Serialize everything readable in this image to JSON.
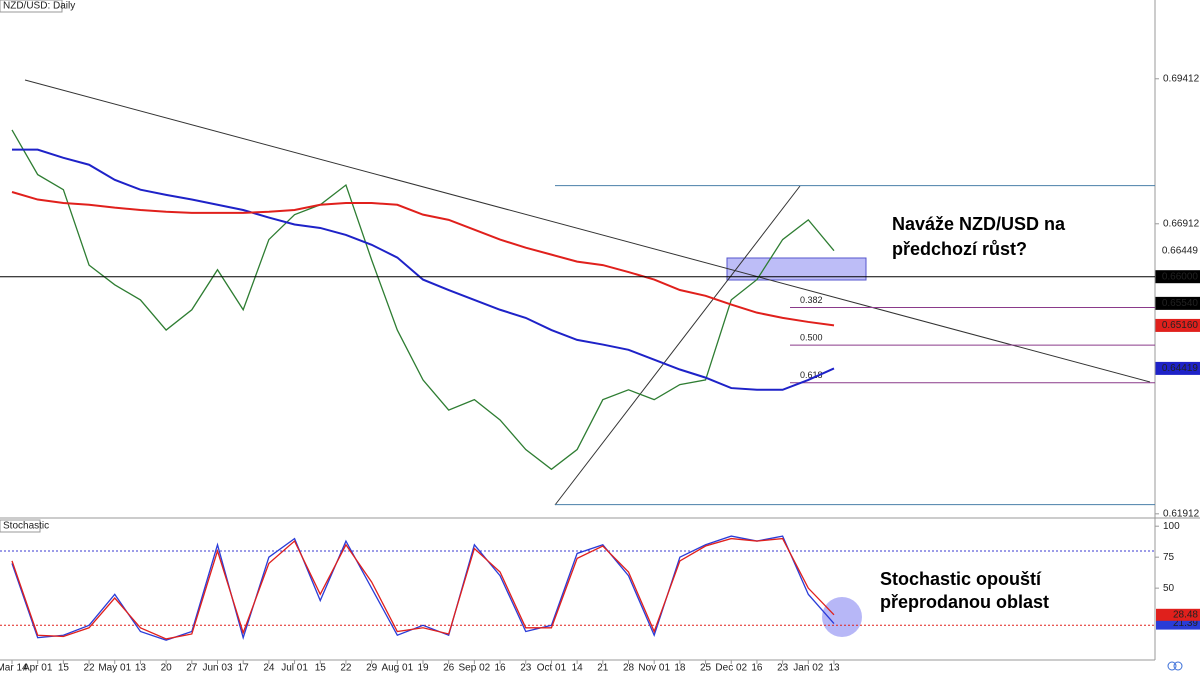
{
  "chart_data": [
    {
      "type": "line",
      "title": "NZD/USD: Daily",
      "categories": [
        "Mar 14",
        "Apr 01",
        "15",
        "22",
        "May 01",
        "13",
        "20",
        "27",
        "Jun 03",
        "17",
        "24",
        "Jul 01",
        "15",
        "22",
        "29",
        "Aug 01",
        "19",
        "26",
        "Sep 02",
        "16",
        "23",
        "Oct 01",
        "14",
        "21",
        "28",
        "Nov 01",
        "18",
        "25",
        "Dec 02",
        "16",
        "23",
        "Jan 02",
        "13"
      ],
      "series": [
        {
          "color": "#2e7d32",
          "values": [
            0.6853,
            0.6776,
            0.675,
            0.662,
            0.6586,
            0.656,
            0.6508,
            0.6543,
            0.6612,
            0.6543,
            0.6664,
            0.6707,
            0.6724,
            0.6758,
            0.6629,
            0.6508,
            0.6422,
            0.637,
            0.6388,
            0.6353,
            0.6302,
            0.6268,
            0.6302,
            0.6388,
            0.6405,
            0.6388,
            0.6414,
            0.6422,
            0.656,
            0.6595,
            0.6664,
            0.6698,
            0.66449
          ]
        },
        {
          "color": "#1e22c8",
          "values": [
            0.6819,
            0.6819,
            0.6805,
            0.6793,
            0.6767,
            0.675,
            0.6741,
            0.6733,
            0.6724,
            0.6715,
            0.6702,
            0.669,
            0.6684,
            0.6672,
            0.6655,
            0.6633,
            0.6595,
            0.6577,
            0.656,
            0.6543,
            0.6529,
            0.6508,
            0.6491,
            0.6483,
            0.6474,
            0.6457,
            0.644,
            0.6426,
            0.6408,
            0.6405,
            0.6405,
            0.6422,
            0.64419
          ]
        },
        {
          "color": "#e0201c",
          "values": [
            0.6746,
            0.6733,
            0.6727,
            0.6724,
            0.6719,
            0.6715,
            0.6712,
            0.671,
            0.671,
            0.671,
            0.6712,
            0.6715,
            0.6724,
            0.6727,
            0.6727,
            0.6724,
            0.6707,
            0.6698,
            0.6681,
            0.6664,
            0.665,
            0.6638,
            0.6626,
            0.662,
            0.6608,
            0.6595,
            0.6577,
            0.6567,
            0.6552,
            0.6538,
            0.6529,
            0.6522,
            0.6516
          ]
        }
      ],
      "ylim": [
        0.6184,
        0.7077
      ],
      "yticks": [
        0.69412,
        0.66912,
        0.61912
      ],
      "price_tags": [
        {
          "value": 0.66449,
          "label": "0.66449",
          "color": "#ffffff"
        },
        {
          "value": 0.66,
          "label": "0.66000",
          "color": "#000000"
        },
        {
          "value": 0.6554,
          "label": "0.65540",
          "color": "#000000"
        },
        {
          "value": 0.6516,
          "label": "0.65160",
          "color": "#e0201c"
        },
        {
          "value": 0.64419,
          "label": "0.64419",
          "color": "#1e22c8"
        }
      ],
      "fib": {
        "high": 0.6757,
        "low": 0.6207,
        "levels": [
          0.382,
          {
            "value": 0.5,
            "label": "0.500"
          },
          0.618
        ]
      },
      "annotations": [
        "Naváže NZD/USD na",
        "předchozí růst?"
      ]
    },
    {
      "type": "line",
      "title": "Stochastic",
      "series": [
        {
          "color": "#2a3cd8",
          "values": [
            70,
            10,
            12,
            20,
            45,
            15,
            8,
            15,
            85,
            10,
            75,
            90,
            40,
            88,
            50,
            12,
            20,
            12,
            85,
            60,
            15,
            20,
            78,
            85,
            60,
            12,
            75,
            85,
            92,
            88,
            92,
            45,
            21.39
          ]
        },
        {
          "color": "#e0201c",
          "values": [
            72,
            12,
            11,
            18,
            42,
            18,
            9,
            13,
            80,
            14,
            70,
            88,
            45,
            85,
            55,
            15,
            18,
            13,
            82,
            63,
            18,
            18,
            74,
            84,
            63,
            15,
            72,
            84,
            90,
            88,
            90,
            50,
            28.48
          ]
        }
      ],
      "ylim": [
        -8,
        105
      ],
      "yticks": [
        100,
        75,
        50
      ],
      "levels": [
        80,
        20
      ],
      "annotations": [
        "Stochastic opouští",
        "přeprodanou oblast"
      ]
    }
  ]
}
